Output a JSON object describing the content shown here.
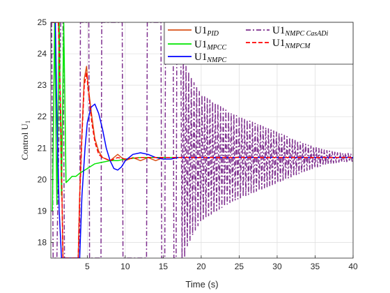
{
  "chart_data": {
    "type": "line",
    "xlabel": "Time (s)",
    "ylabel_main": "Control U",
    "ylabel_sub": "1",
    "xlim": [
      0.2,
      40
    ],
    "ylim": [
      17.5,
      25
    ],
    "xticks": [
      5,
      10,
      15,
      20,
      25,
      30,
      35,
      40
    ],
    "yticks": [
      18,
      19,
      20,
      21,
      22,
      23,
      24,
      25
    ],
    "grid": true,
    "legend_position": "top-right",
    "series": [
      {
        "name_main": "U1",
        "name_sub": "PID",
        "color": "#d95319",
        "style": "solid",
        "x": [
          0.3,
          0.8,
          1.2,
          1.5,
          1.8,
          3.8,
          4.0,
          4.3,
          4.6,
          4.9,
          5.1,
          5.3,
          5.6,
          6.0,
          6.5,
          7.0,
          8.0,
          9.0,
          10.0,
          11.0,
          12.0,
          13.0,
          14.0,
          15.0,
          16.0,
          18.0,
          20.0,
          25.0,
          30.0,
          35.0,
          40.0
        ],
        "y": [
          25.0,
          25.0,
          25.0,
          22.0,
          17.5,
          17.5,
          19.5,
          21.5,
          23.2,
          23.6,
          23.0,
          22.6,
          22.0,
          21.3,
          20.9,
          20.7,
          20.6,
          20.8,
          20.6,
          20.7,
          20.6,
          20.7,
          20.6,
          20.7,
          20.7,
          20.7,
          20.7,
          20.7,
          20.7,
          20.7,
          20.7
        ]
      },
      {
        "name_main": "U1",
        "name_sub": "MPCC",
        "color": "#00e600",
        "style": "solid",
        "x": [
          0.4,
          0.7,
          1.0,
          1.3,
          1.6,
          1.9,
          2.2,
          2.6,
          3.0,
          3.5,
          4.0,
          5.0,
          6.0,
          7.0,
          8.0,
          9.0,
          10.0,
          12.0,
          15.0,
          20.0,
          25.0,
          30.0,
          35.0,
          40.0
        ],
        "y": [
          19.0,
          25.0,
          19.2,
          25.0,
          19.5,
          25.0,
          19.9,
          20.0,
          20.1,
          20.1,
          20.2,
          20.35,
          20.5,
          20.55,
          20.6,
          20.6,
          20.65,
          20.7,
          20.7,
          20.7,
          20.7,
          20.7,
          20.7,
          20.7
        ]
      },
      {
        "name_main": "U1",
        "name_sub": "NMPC",
        "color": "#0000ff",
        "style": "solid",
        "x": [
          0.3,
          0.8,
          1.0,
          1.3,
          1.6,
          2.0,
          4.0,
          4.3,
          4.7,
          5.0,
          5.5,
          6.0,
          6.5,
          7.0,
          7.5,
          8.0,
          8.5,
          9.0,
          9.5,
          10.0,
          11.0,
          12.0,
          13.0,
          14.0,
          15.0,
          16.0,
          17.0,
          20.0,
          25.0,
          30.0,
          35.0,
          40.0
        ],
        "y": [
          25.0,
          25.0,
          22.0,
          19.0,
          17.5,
          17.5,
          17.5,
          19.5,
          21.0,
          21.8,
          22.3,
          22.4,
          22.1,
          21.6,
          21.0,
          20.6,
          20.35,
          20.3,
          20.4,
          20.6,
          20.8,
          20.85,
          20.8,
          20.7,
          20.65,
          20.65,
          20.7,
          20.7,
          20.7,
          20.7,
          20.7,
          20.7
        ]
      },
      {
        "name_main": "U1",
        "name_sub": "NMPC CasADi",
        "color": "#7e2f8e",
        "style": "dash-dot",
        "x": [
          0.3,
          0.5,
          1.0,
          1.5,
          1.8,
          2.0,
          4.0,
          4.1,
          5.2,
          5.3,
          6.8,
          6.9,
          9.6,
          9.7,
          12.8,
          12.9,
          14.7,
          14.8,
          15.2,
          15.3,
          16.3,
          16.4,
          16.7,
          16.8,
          17.3,
          17.5,
          17.7,
          18.0,
          18.5,
          19.0,
          20.0,
          22.0,
          24.0,
          26.0,
          28.0,
          30.0,
          32.0,
          34.0,
          36.0,
          38.0,
          39.0,
          40.0
        ],
        "y": [
          25.0,
          17.5,
          17.5,
          25.0,
          25.0,
          17.5,
          17.5,
          25.0,
          25.0,
          17.5,
          17.5,
          25.0,
          25.0,
          17.5,
          17.5,
          25.0,
          25.0,
          17.5,
          17.5,
          25.0,
          25.0,
          17.5,
          17.5,
          25.0,
          25.0,
          17.5,
          17.5,
          21.0,
          21.0,
          20.7,
          20.7,
          20.7,
          20.7,
          20.7,
          20.7,
          20.7,
          20.7,
          20.7,
          20.7,
          20.7,
          20.7,
          20.7
        ],
        "osc_envelope": {
          "t": [
            17.3,
            18.0,
            19.0,
            20.0,
            22.0,
            24.0,
            26.0,
            28.0,
            30.0,
            32.0,
            34.0,
            36.0,
            38.0,
            40.0
          ],
          "amp": [
            4.0,
            2.9,
            2.4,
            2.0,
            1.7,
            1.4,
            1.2,
            1.0,
            0.8,
            0.6,
            0.4,
            0.25,
            0.15,
            0.12
          ],
          "center": 20.7,
          "period": 0.35
        }
      },
      {
        "name_main": "U1",
        "name_sub": "NMPCM",
        "color": "#ff0000",
        "style": "dashed",
        "x": [
          0.3,
          0.8,
          1.2,
          1.5,
          1.8,
          3.8,
          4.0,
          4.3,
          4.6,
          4.9,
          5.1,
          5.3,
          5.6,
          6.0,
          6.5,
          7.0,
          8.0,
          9.0,
          10.0,
          12.0,
          15.0,
          20.0,
          25.0,
          30.0,
          35.0,
          40.0
        ],
        "y": [
          25.0,
          25.0,
          25.0,
          22.0,
          17.5,
          17.5,
          19.4,
          21.4,
          23.0,
          23.4,
          22.9,
          22.5,
          21.8,
          21.2,
          20.8,
          20.7,
          20.6,
          20.7,
          20.65,
          20.7,
          20.7,
          20.7,
          20.7,
          20.7,
          20.7,
          20.7
        ]
      }
    ]
  }
}
